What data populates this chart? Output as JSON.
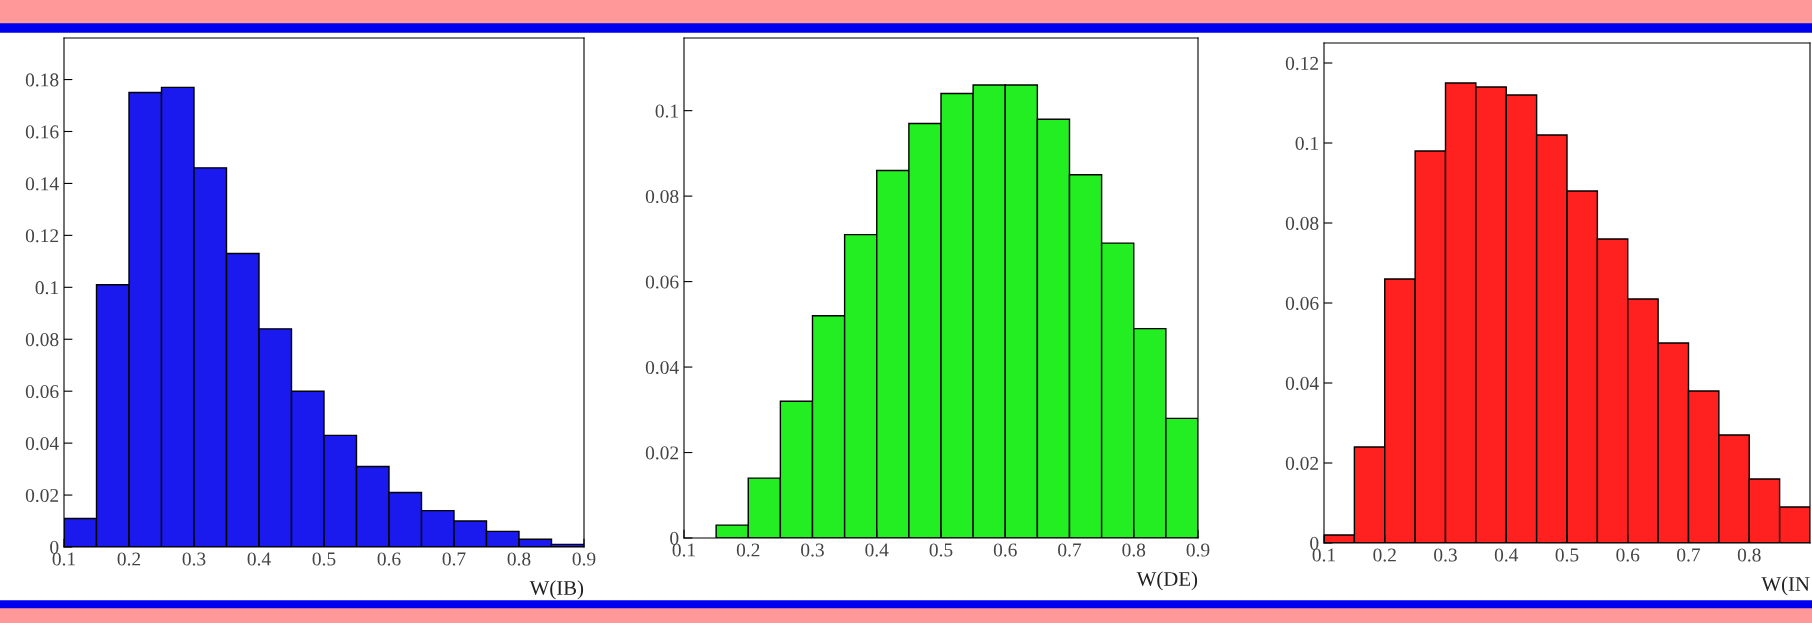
{
  "chart_data": [
    {
      "type": "histogram",
      "xlabel": "W(IB)",
      "bins": [
        0.1,
        0.15,
        0.2,
        0.25,
        0.3,
        0.35,
        0.4,
        0.45,
        0.5,
        0.55,
        0.6,
        0.65,
        0.7,
        0.75,
        0.8,
        0.85,
        0.9
      ],
      "values": [
        0.011,
        0.101,
        0.175,
        0.177,
        0.146,
        0.113,
        0.084,
        0.06,
        0.043,
        0.031,
        0.021,
        0.014,
        0.01,
        0.006,
        0.003,
        0.001
      ],
      "color": "#1a1aee",
      "xlim": [
        0.1,
        0.9
      ],
      "xticks": [
        0.1,
        0.2,
        0.3,
        0.4,
        0.5,
        0.6,
        0.7,
        0.8,
        0.9
      ],
      "ylim": [
        0,
        0.196
      ],
      "yticks": [
        0,
        0.02,
        0.04,
        0.06,
        0.08,
        0.1,
        0.12,
        0.14,
        0.16,
        0.18
      ]
    },
    {
      "type": "histogram",
      "xlabel": "W(DE)",
      "bins": [
        0.1,
        0.15,
        0.2,
        0.25,
        0.3,
        0.35,
        0.4,
        0.45,
        0.5,
        0.55,
        0.6,
        0.65,
        0.7,
        0.75,
        0.8,
        0.85,
        0.9
      ],
      "values": [
        0,
        0.003,
        0.014,
        0.032,
        0.052,
        0.071,
        0.086,
        0.097,
        0.104,
        0.106,
        0.106,
        0.098,
        0.085,
        0.069,
        0.049,
        0.028
      ],
      "color": "#22ee22",
      "xlim": [
        0.1,
        0.9
      ],
      "xticks": [
        0.1,
        0.2,
        0.3,
        0.4,
        0.5,
        0.6,
        0.7,
        0.8,
        0.9
      ],
      "ylim": [
        0,
        0.117
      ],
      "yticks": [
        0,
        0.02,
        0.04,
        0.06,
        0.08,
        0.1
      ]
    },
    {
      "type": "histogram",
      "xlabel": "W(IN",
      "bins": [
        0.1,
        0.15,
        0.2,
        0.25,
        0.3,
        0.35,
        0.4,
        0.45,
        0.5,
        0.55,
        0.6,
        0.65,
        0.7,
        0.75,
        0.8,
        0.85,
        0.9
      ],
      "values": [
        0.002,
        0.024,
        0.066,
        0.098,
        0.115,
        0.114,
        0.112,
        0.102,
        0.088,
        0.076,
        0.061,
        0.05,
        0.038,
        0.027,
        0.016,
        0.009
      ],
      "color": "#ff2020",
      "xlim": [
        0.1,
        0.9
      ],
      "xticks": [
        0.1,
        0.2,
        0.3,
        0.4,
        0.5,
        0.6,
        0.7,
        0.8
      ],
      "ylim": [
        0,
        0.125
      ],
      "yticks": [
        0,
        0.02,
        0.04,
        0.06,
        0.08,
        0.1,
        0.12
      ]
    }
  ]
}
